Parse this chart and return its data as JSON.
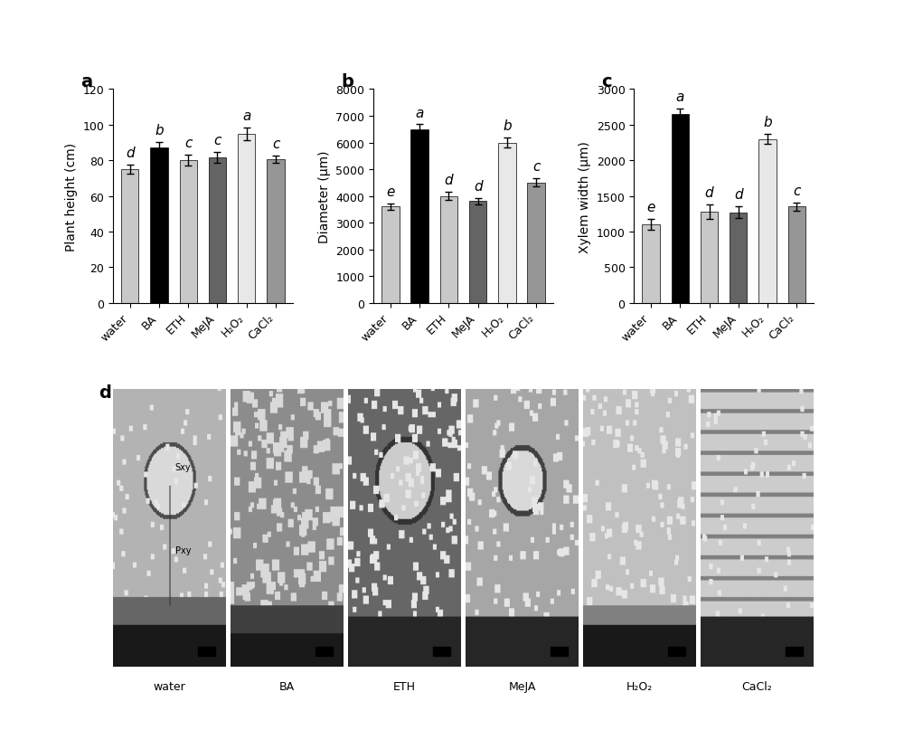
{
  "panel_a": {
    "title": "a",
    "ylabel": "Plant height (cm)",
    "categories": [
      "water",
      "BA",
      "ETH",
      "MeJA",
      "H₂O₂",
      "CaCl₂"
    ],
    "values": [
      75.0,
      87.0,
      80.0,
      81.5,
      95.0,
      80.5
    ],
    "errors": [
      2.5,
      3.5,
      3.0,
      3.0,
      3.5,
      2.0
    ],
    "letters": [
      "d",
      "b",
      "c",
      "c",
      "a",
      "c"
    ],
    "ylim": [
      0,
      120
    ],
    "yticks": [
      0,
      20,
      40,
      60,
      80,
      100,
      120
    ],
    "bar_colors": [
      "#c8c8c8",
      "#000000",
      "#c8c8c8",
      "#646464",
      "#e8e8e8",
      "#969696"
    ]
  },
  "panel_b": {
    "title": "b",
    "ylabel": "Diameter (μm)",
    "categories": [
      "water",
      "BA",
      "ETH",
      "MeJA",
      "H₂O₂",
      "CaCl₂"
    ],
    "values": [
      3600,
      6500,
      4000,
      3800,
      6000,
      4500
    ],
    "errors": [
      120,
      180,
      150,
      120,
      200,
      150
    ],
    "letters": [
      "e",
      "a",
      "d",
      "d",
      "b",
      "c"
    ],
    "ylim": [
      0,
      8000
    ],
    "yticks": [
      0,
      1000,
      2000,
      3000,
      4000,
      5000,
      6000,
      7000,
      8000
    ],
    "bar_colors": [
      "#c8c8c8",
      "#000000",
      "#c8c8c8",
      "#646464",
      "#e8e8e8",
      "#969696"
    ]
  },
  "panel_c": {
    "title": "c",
    "ylabel": "Xylem width (μm)",
    "categories": [
      "water",
      "BA",
      "ETH",
      "MeJA",
      "H₂O₂",
      "CaCl₂"
    ],
    "values": [
      1100,
      2650,
      1280,
      1270,
      2300,
      1350
    ],
    "errors": [
      80,
      80,
      100,
      80,
      70,
      60
    ],
    "letters": [
      "e",
      "a",
      "d",
      "d",
      "b",
      "c"
    ],
    "ylim": [
      0,
      3000
    ],
    "yticks": [
      0,
      500,
      1000,
      1500,
      2000,
      2500,
      3000
    ],
    "bar_colors": [
      "#c8c8c8",
      "#000000",
      "#c8c8c8",
      "#646464",
      "#e8e8e8",
      "#969696"
    ]
  },
  "panel_d": {
    "title": "d",
    "labels": [
      "water",
      "BA",
      "ETH",
      "MeJA",
      "H₂O₂",
      "CaCl₂"
    ]
  },
  "figure_bg": "#ffffff",
  "bar_width": 0.6,
  "tick_fontsize": 9,
  "label_fontsize": 10,
  "letter_fontsize": 11,
  "panel_label_fontsize": 14
}
